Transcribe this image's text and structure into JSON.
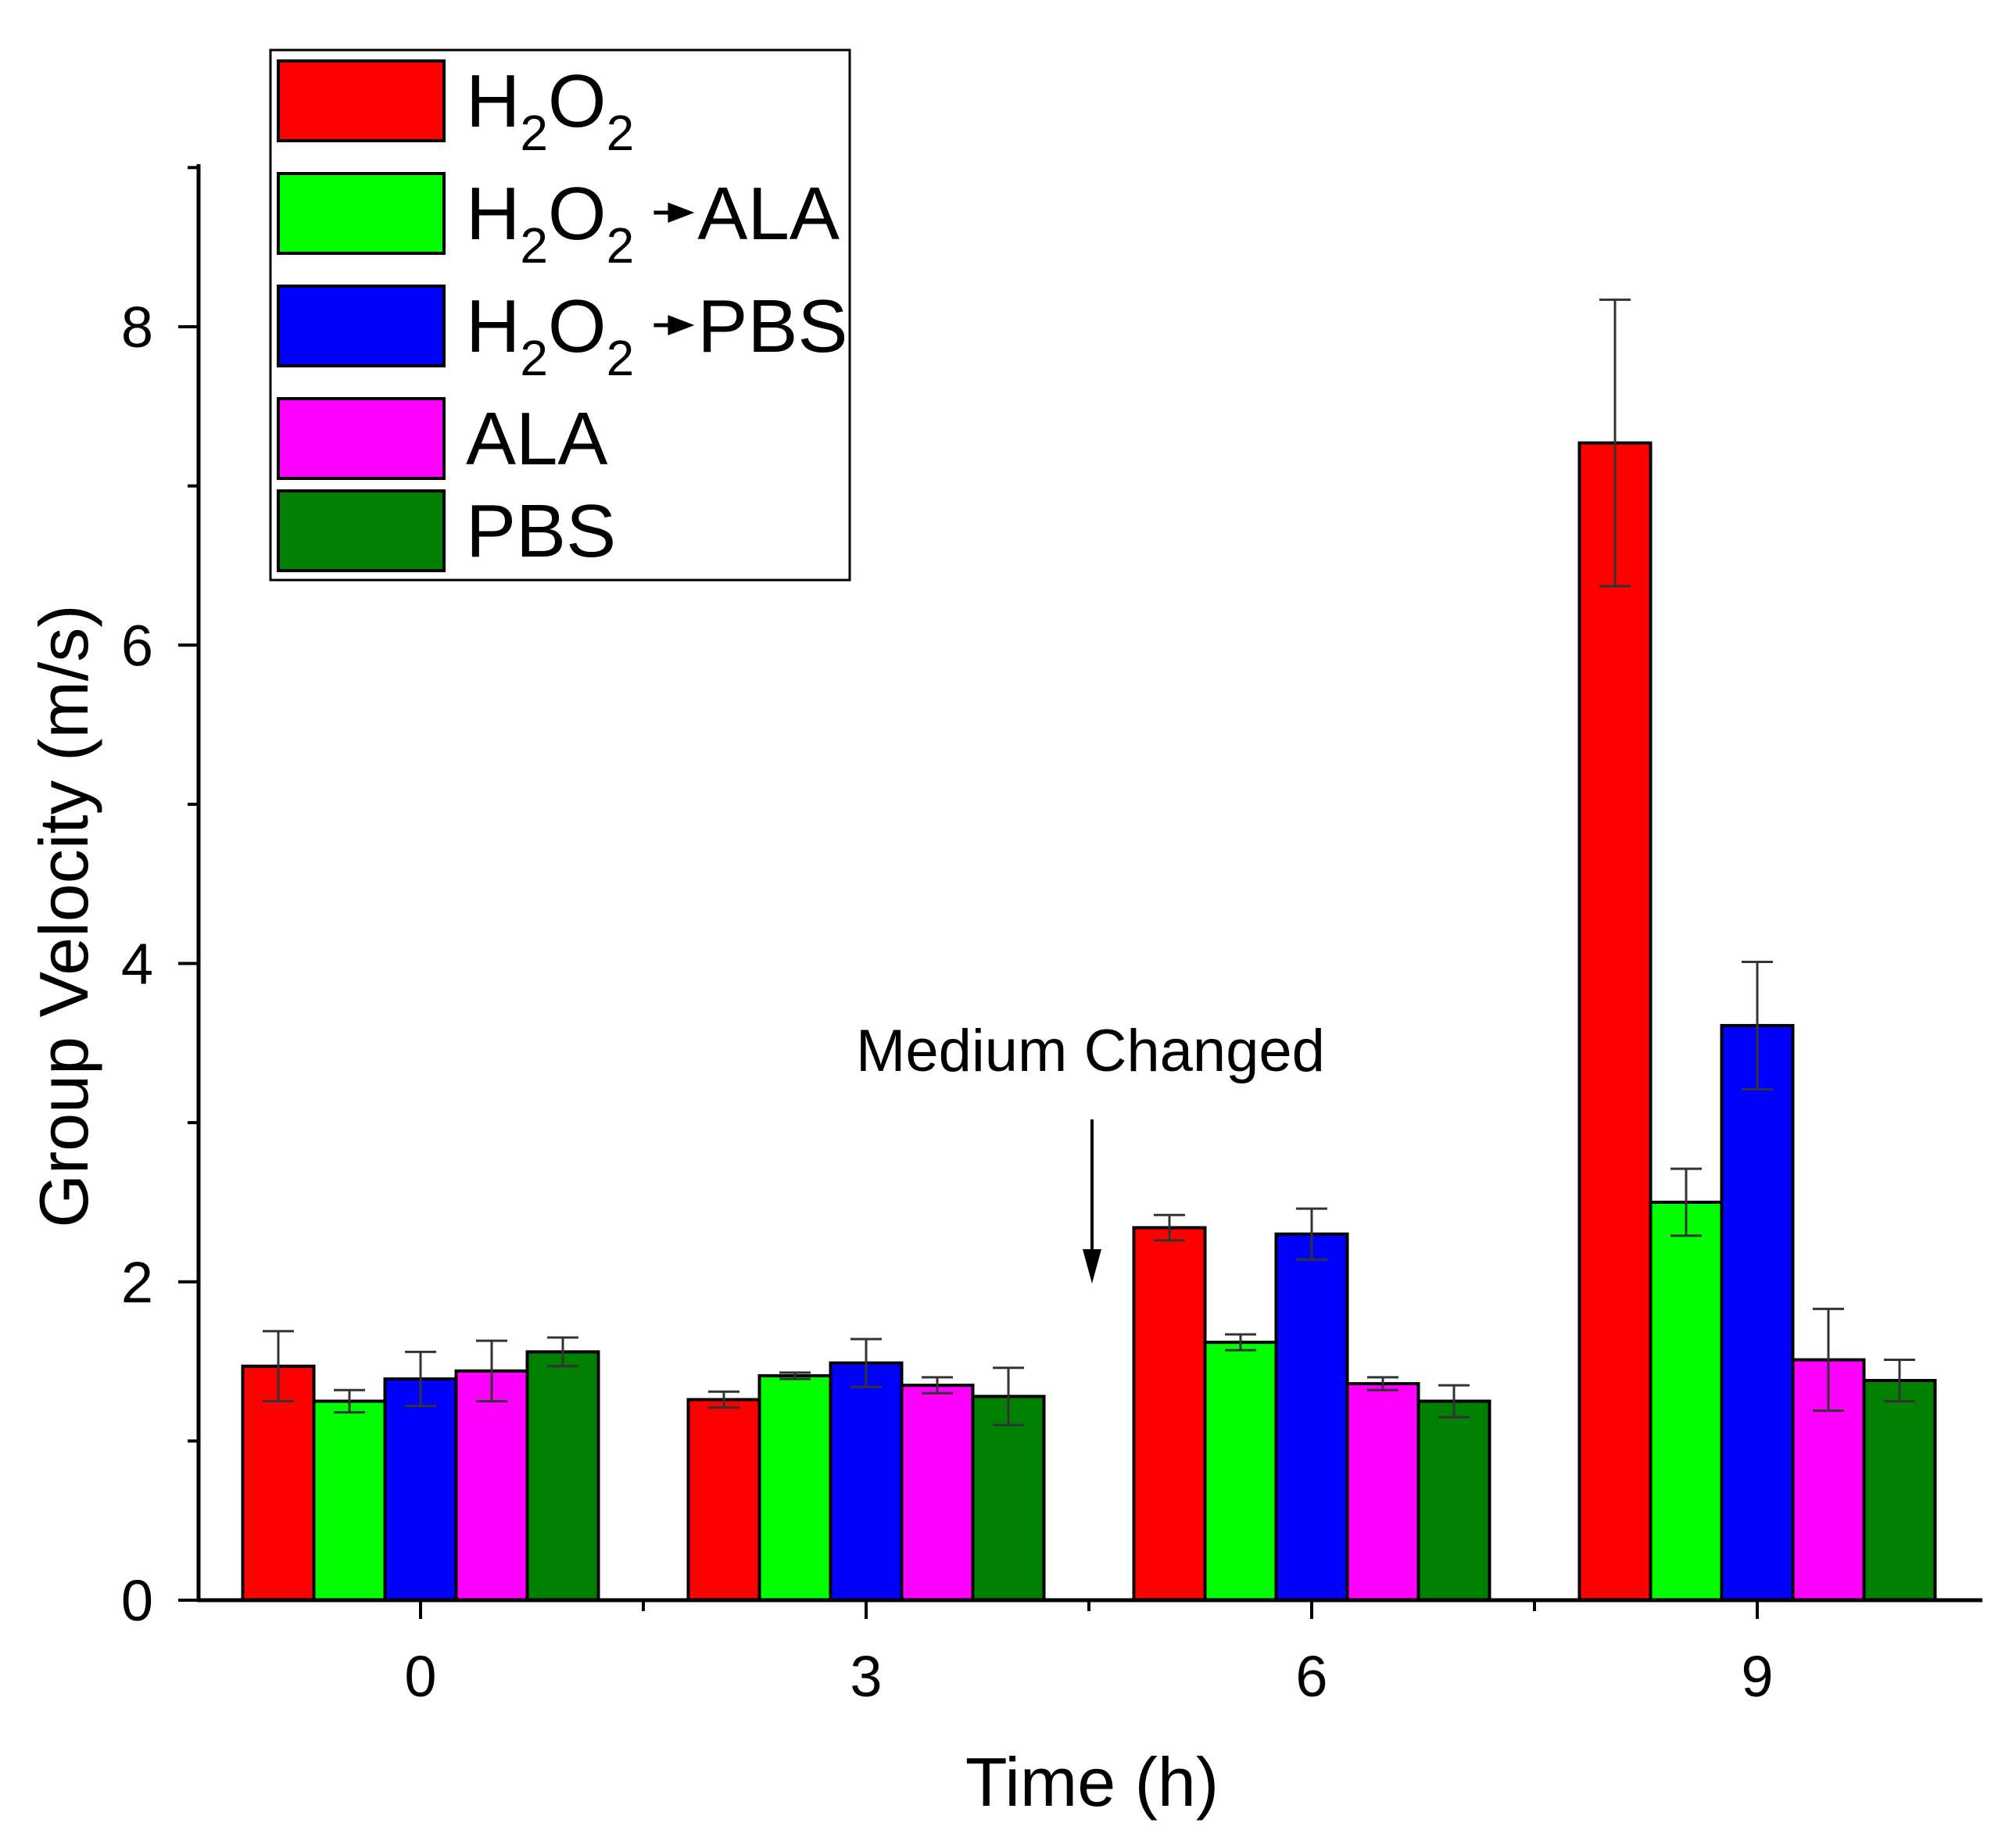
{
  "chart_data": {
    "type": "bar",
    "title": "",
    "xlabel": "Time (h)",
    "ylabel": "Group Velocity (m/s)",
    "categories": [
      "0",
      "3",
      "6",
      "9"
    ],
    "ylim": [
      0,
      9
    ],
    "yticks": [
      "0",
      "2",
      "4",
      "6",
      "8"
    ],
    "series": [
      {
        "name": "H2O2",
        "label_base": "H",
        "label_sub1": "2",
        "label_mid": "O",
        "label_sub2": "2",
        "label_suffix": "",
        "color": "#ff0000",
        "values": [
          1.47,
          1.26,
          2.34,
          7.27
        ],
        "errors": [
          0.22,
          0.05,
          0.08,
          0.9
        ]
      },
      {
        "name": "H2O2->ALA",
        "label_base": "H",
        "label_sub1": "2",
        "label_mid": "O",
        "label_sub2": "2",
        "label_suffix": "ALA",
        "color": "#00ff00",
        "values": [
          1.25,
          1.41,
          1.62,
          2.5
        ],
        "errors": [
          0.07,
          0.02,
          0.05,
          0.21
        ]
      },
      {
        "name": "H2O2->PBS",
        "label_base": "H",
        "label_sub1": "2",
        "label_mid": "O",
        "label_sub2": "2",
        "label_suffix": "PBS",
        "color": "#0000ff",
        "values": [
          1.39,
          1.49,
          2.3,
          3.61
        ],
        "errors": [
          0.17,
          0.15,
          0.16,
          0.4
        ]
      },
      {
        "name": "ALA",
        "label_base": "ALA",
        "label_sub1": "",
        "label_mid": "",
        "label_sub2": "",
        "label_suffix": "",
        "color": "#ff00ff",
        "values": [
          1.44,
          1.35,
          1.36,
          1.51
        ],
        "errors": [
          0.19,
          0.05,
          0.04,
          0.32
        ]
      },
      {
        "name": "PBS",
        "label_base": "PBS",
        "label_sub1": "",
        "label_mid": "",
        "label_sub2": "",
        "label_suffix": "",
        "color": "#008000",
        "values": [
          1.56,
          1.28,
          1.25,
          1.38
        ],
        "errors": [
          0.09,
          0.18,
          0.1,
          0.13
        ]
      }
    ],
    "legend_position": "top-left",
    "annotation": {
      "text": "Medium Changed",
      "points_to": "between 3 h and 6 h, near value 2"
    },
    "grid": false
  }
}
